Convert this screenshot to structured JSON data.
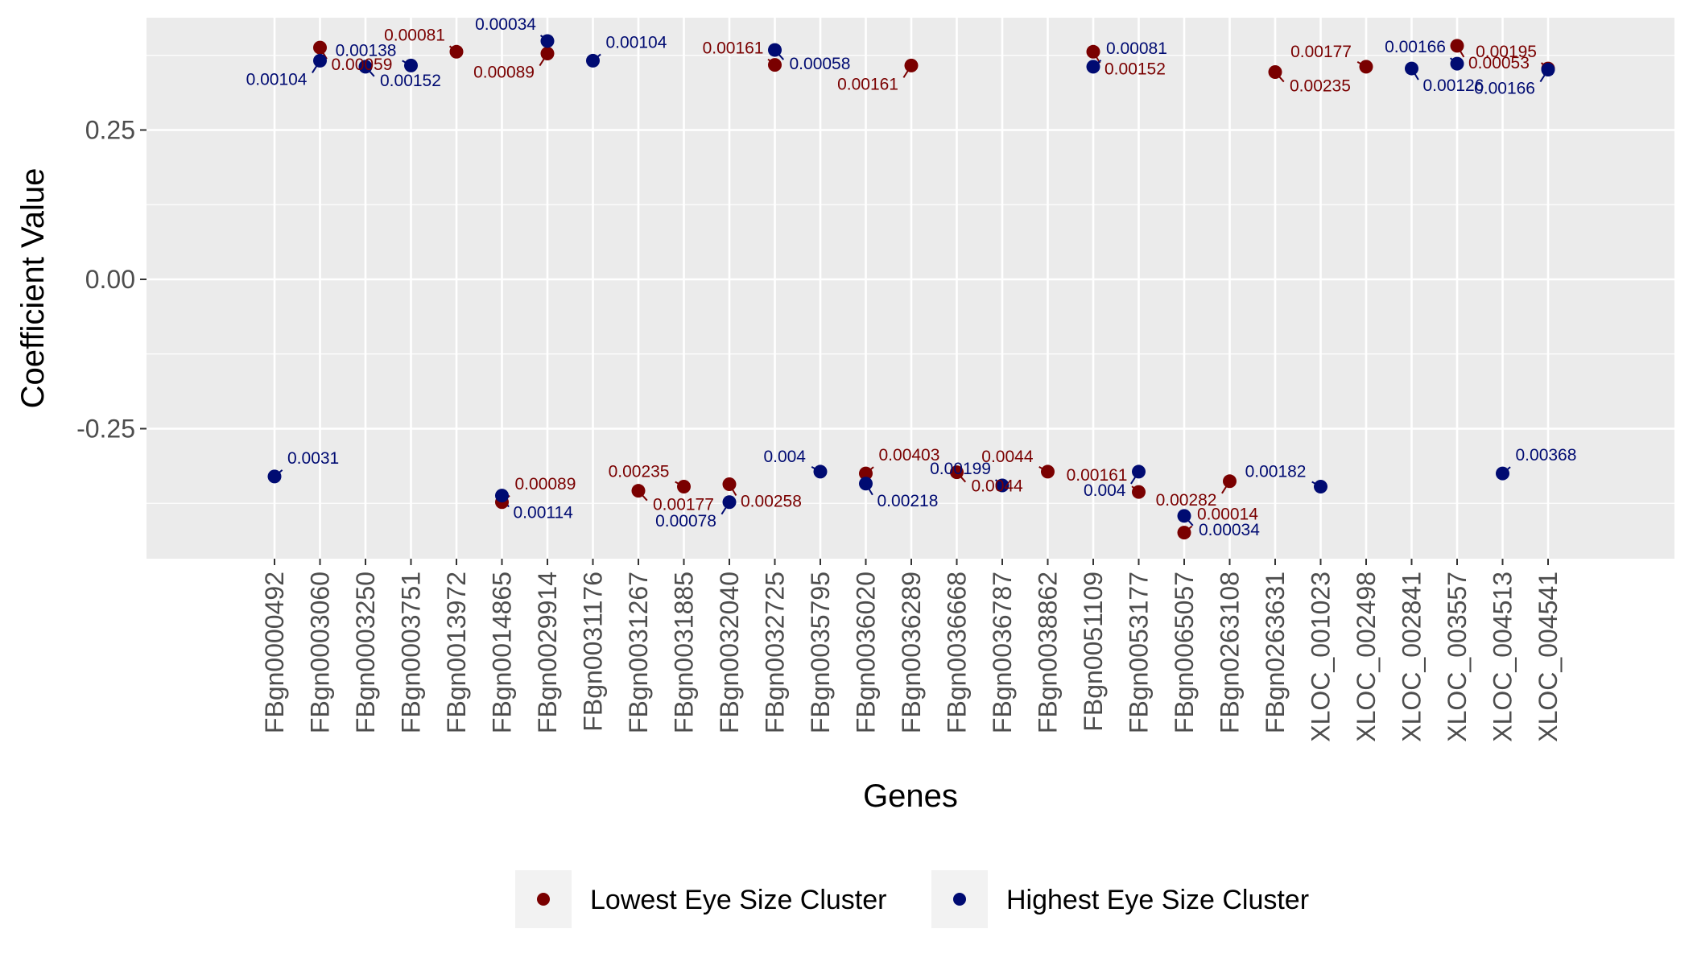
{
  "chart_data": {
    "type": "scatter",
    "xlabel": "Genes",
    "ylabel": "Coefficient Value",
    "ylim": [
      -0.375,
      0.39
    ],
    "yticks": [
      -0.25,
      0.0,
      0.25
    ],
    "ytick_labels": [
      "-0.25",
      "0.00",
      "0.25"
    ],
    "grid": true,
    "legend_position": "bottom",
    "categories": [
      "FBgn0000492",
      "FBgn0003060",
      "FBgn0003250",
      "FBgn0003751",
      "FBgn0013972",
      "FBgn0014865",
      "FBgn0029914",
      "FBgn0031176",
      "FBgn0031267",
      "FBgn0031885",
      "FBgn0032040",
      "FBgn0032725",
      "FBgn0035795",
      "FBgn0036020",
      "FBgn0036289",
      "FBgn0036668",
      "FBgn0036787",
      "FBgn0038862",
      "FBgn0051109",
      "FBgn0053177",
      "FBgn0065057",
      "FBgn0263108",
      "FBgn0263631",
      "XLOC_001023",
      "XLOC_002498",
      "XLOC_002841",
      "XLOC_003557",
      "XLOC_004513",
      "XLOC_004541"
    ],
    "colors": {
      "lowest": "#7a0000",
      "highest": "#000b72",
      "panel": "#ebebeb",
      "grid": "#ffffff"
    },
    "series": [
      {
        "name": "Lowest Eye Size Cluster",
        "color": "#7a0000",
        "points": [
          {
            "x": "FBgn0003060",
            "y": 0.388,
            "label": "0.00059"
          },
          {
            "x": "FBgn0013972",
            "y": 0.381,
            "label": "0.00081"
          },
          {
            "x": "FBgn0014865",
            "y": -0.373,
            "label": "0.00089"
          },
          {
            "x": "FBgn0029914",
            "y": 0.378,
            "label": "0.00089"
          },
          {
            "x": "FBgn0031267",
            "y": -0.354,
            "label": "0.00177"
          },
          {
            "x": "FBgn0031885",
            "y": -0.347,
            "label": "0.00235"
          },
          {
            "x": "FBgn0032040",
            "y": -0.343,
            "label": "0.00258"
          },
          {
            "x": "FBgn0032725",
            "y": 0.359,
            "label": "0.00161"
          },
          {
            "x": "FBgn0036020",
            "y": -0.325,
            "label": "0.00403"
          },
          {
            "x": "FBgn0036289",
            "y": 0.358,
            "label": "0.00161"
          },
          {
            "x": "FBgn0036668",
            "y": -0.323,
            "label": "0.0044"
          },
          {
            "x": "FBgn0038862",
            "y": -0.322,
            "label": "0.0044"
          },
          {
            "x": "FBgn0051109",
            "y": 0.381,
            "label": "0.00152"
          },
          {
            "x": "FBgn0053177",
            "y": -0.356,
            "label": "0.00161"
          },
          {
            "x": "FBgn0065057",
            "y": -0.424,
            "label": "0.00014"
          },
          {
            "x": "FBgn0263108",
            "y": -0.338,
            "label": "0.00282"
          },
          {
            "x": "FBgn0263631",
            "y": 0.347,
            "label": "0.00235"
          },
          {
            "x": "XLOC_002498",
            "y": 0.356,
            "label": "0.00177"
          },
          {
            "x": "XLOC_003557",
            "y": 0.391,
            "label": "0.00053"
          },
          {
            "x": "XLOC_004541",
            "y": 0.353,
            "label": "0.00195"
          }
        ]
      },
      {
        "name": "Highest Eye Size Cluster",
        "color": "#000b72",
        "points": [
          {
            "x": "FBgn0000492",
            "y": -0.33,
            "label": "0.0031"
          },
          {
            "x": "FBgn0003060",
            "y": 0.366,
            "label": "0.00104"
          },
          {
            "x": "FBgn0003250",
            "y": 0.356,
            "label": "0.00152"
          },
          {
            "x": "FBgn0003751",
            "y": 0.358,
            "label": "0.00138"
          },
          {
            "x": "FBgn0014865",
            "y": -0.362,
            "label": "0.00114"
          },
          {
            "x": "FBgn0029914",
            "y": 0.399,
            "label": "0.00034"
          },
          {
            "x": "FBgn0031176",
            "y": 0.366,
            "label": "0.00104"
          },
          {
            "x": "FBgn0032040",
            "y": -0.373,
            "label": "0.00078"
          },
          {
            "x": "FBgn0032725",
            "y": 0.384,
            "label": "0.00058"
          },
          {
            "x": "FBgn0035795",
            "y": -0.322,
            "label": "0.004"
          },
          {
            "x": "FBgn0036020",
            "y": -0.342,
            "label": "0.00218"
          },
          {
            "x": "FBgn0036787",
            "y": -0.345,
            "label": "0.00199"
          },
          {
            "x": "FBgn0051109",
            "y": 0.356,
            "label": "0.00081"
          },
          {
            "x": "FBgn0053177",
            "y": -0.322,
            "label": "0.004"
          },
          {
            "x": "FBgn0065057",
            "y": -0.396,
            "label": "0.00034"
          },
          {
            "x": "XLOC_001023",
            "y": -0.347,
            "label": "0.00182"
          },
          {
            "x": "XLOC_002841",
            "y": 0.353,
            "label": "0.00126"
          },
          {
            "x": "XLOC_003557",
            "y": 0.361,
            "label": "0.00166"
          },
          {
            "x": "XLOC_004513",
            "y": -0.325,
            "label": "0.00368"
          },
          {
            "x": "XLOC_004541",
            "y": 0.351,
            "label": "0.00166"
          }
        ]
      }
    ]
  }
}
